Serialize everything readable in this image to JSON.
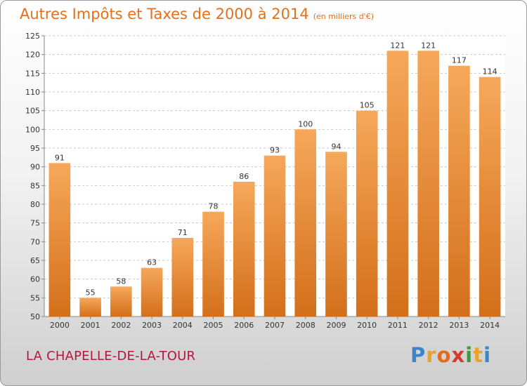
{
  "header": {
    "title": "Autres Impôts et Taxes de 2000 à 2014",
    "unit": "(en milliers d'€)"
  },
  "footer": {
    "place": "LA CHAPELLE-DE-LA-TOUR"
  },
  "logo": {
    "letters": [
      "P",
      "r",
      "o",
      "x",
      "i",
      "t",
      "i"
    ],
    "colors": [
      "#3b86c8",
      "#e9a22a",
      "#e46a1c",
      "#d23a2b",
      "#3a9d3a",
      "#e9a22a",
      "#3b86c8"
    ]
  },
  "colors": {
    "bar_light": "#f6a85a",
    "bar_dark": "#d36f1b",
    "grid": "#c8c8c8"
  },
  "chart_data": {
    "type": "bar",
    "categories": [
      "2000",
      "2001",
      "2002",
      "2003",
      "2004",
      "2005",
      "2006",
      "2007",
      "2008",
      "2009",
      "2010",
      "2011",
      "2012",
      "2013",
      "2014"
    ],
    "values": [
      91,
      55,
      58,
      63,
      71,
      78,
      86,
      93,
      100,
      94,
      105,
      121,
      121,
      117,
      114
    ],
    "ylim": [
      50,
      125
    ],
    "yticks": [
      50,
      55,
      60,
      65,
      70,
      75,
      80,
      85,
      90,
      95,
      100,
      105,
      110,
      115,
      120,
      125
    ],
    "grid": "horizontal-dashed",
    "legend": "none"
  }
}
